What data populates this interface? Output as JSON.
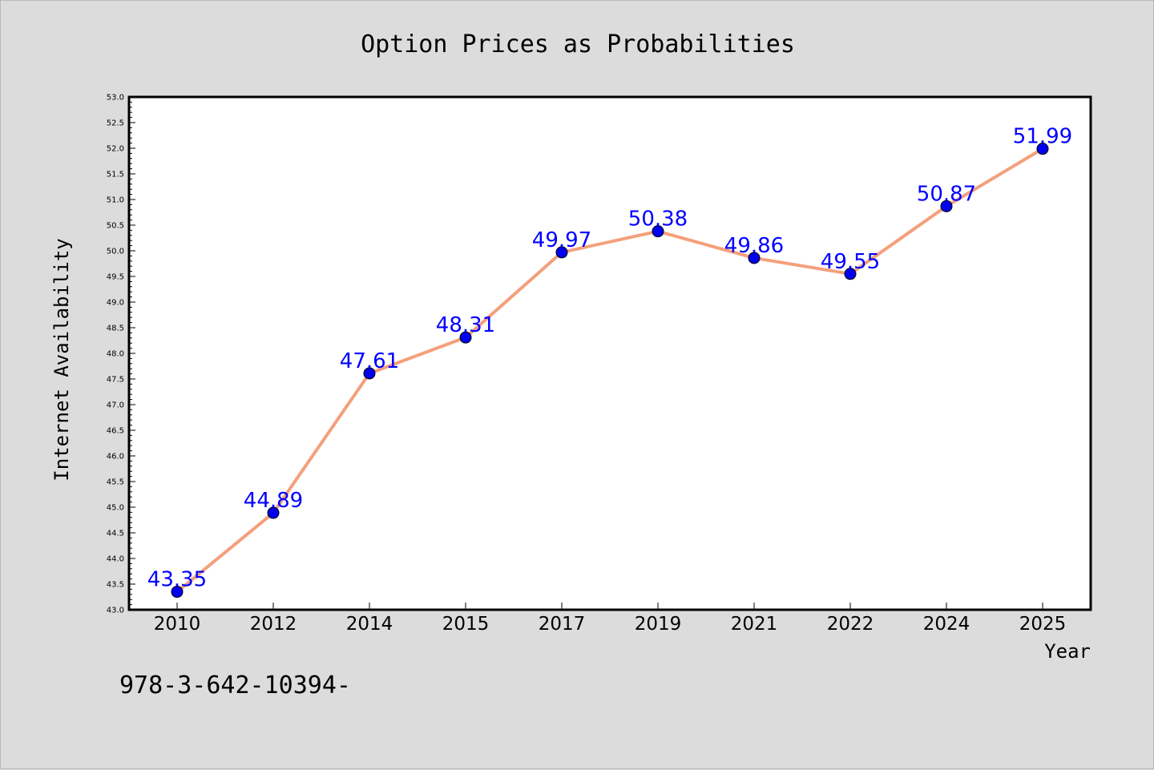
{
  "title": "Option Prices as Probabilities",
  "footer_text": "978-3-642-10394-",
  "colors": {
    "background": "#dcdcdc",
    "plot_background": "#ffffff",
    "line": "#f4a07c",
    "marker": "#0000ee",
    "data_label": "#0000ff"
  },
  "chart_data": {
    "type": "line",
    "title": "Option Prices as Probabilities",
    "xlabel": "Year",
    "ylabel": "Internet Availability",
    "categories": [
      "2010",
      "2012",
      "2014",
      "2015",
      "2017",
      "2019",
      "2021",
      "2022",
      "2024",
      "2025"
    ],
    "series": [
      {
        "values": [
          43.35,
          44.89,
          47.61,
          48.31,
          49.97,
          50.38,
          49.86,
          49.55,
          50.87,
          51.99
        ],
        "labels": [
          "43.35",
          "44.89",
          "47.61",
          "48.31",
          "49.97",
          "50.38",
          "49.86",
          "49.55",
          "50.87",
          "51.99"
        ]
      }
    ],
    "ylim": [
      43.0,
      53.0
    ],
    "yticks": [
      "43.0",
      "43.5",
      "44.0",
      "44.5",
      "45.0",
      "45.5",
      "46.0",
      "46.5",
      "47.0",
      "47.5",
      "48.0",
      "48.5",
      "49.0",
      "49.5",
      "50.0",
      "50.5",
      "51.0",
      "51.5",
      "52.0",
      "52.5",
      "53.0"
    ],
    "grid": false,
    "legend": "none"
  }
}
